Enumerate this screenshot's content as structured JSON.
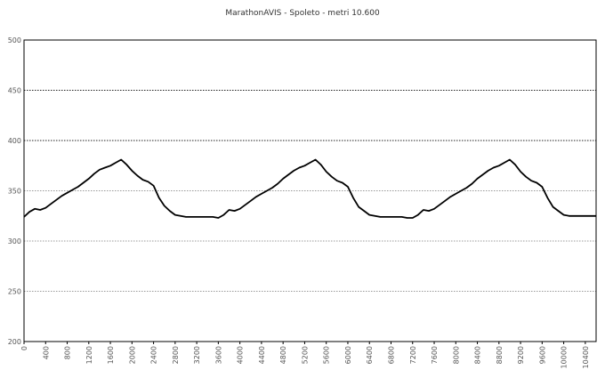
{
  "chart_data": {
    "type": "line",
    "title": "MarathonAVIS - Spoleto - metri 10.600",
    "xlabel": "",
    "ylabel": "",
    "xlim": [
      0,
      10600
    ],
    "ylim": [
      200,
      500
    ],
    "y_ticks": [
      "200",
      "250",
      "300",
      "350",
      "400",
      "450",
      "500"
    ],
    "x_ticks": [
      "0",
      "400",
      "800",
      "1200",
      "1600",
      "2000",
      "2400",
      "2800",
      "3200",
      "3600",
      "4000",
      "4400",
      "4800",
      "5200",
      "5600",
      "6000",
      "6400",
      "6800",
      "7200",
      "7600",
      "8000",
      "8400",
      "8800",
      "9200",
      "9600",
      "10000",
      "10400"
    ],
    "grid": true,
    "legend": "none",
    "line_color": "#000000",
    "series": [
      {
        "x": [
          0,
          100,
          200,
          300,
          400,
          500,
          600,
          700,
          800,
          900,
          1000,
          1100,
          1200,
          1300,
          1400,
          1500,
          1600,
          1700,
          1800,
          1900,
          2000,
          2100,
          2200,
          2300,
          2400,
          2500,
          2600,
          2700,
          2800,
          2900,
          3000,
          3100,
          3200,
          3300,
          3400,
          3500,
          3600,
          3700,
          3800,
          3900,
          4000,
          4100,
          4200,
          4300,
          4400,
          4500,
          4600,
          4700,
          4800,
          4900,
          5000,
          5100,
          5200,
          5300,
          5400,
          5500,
          5600,
          5700,
          5800,
          5900,
          6000,
          6100,
          6200,
          6300,
          6400,
          6500,
          6600,
          6700,
          6800,
          6900,
          7000,
          7100,
          7200,
          7300,
          7400,
          7500,
          7600,
          7700,
          7800,
          7900,
          8000,
          8100,
          8200,
          8300,
          8400,
          8500,
          8600,
          8700,
          8800,
          8900,
          9000,
          9100,
          9200,
          9300,
          9400,
          9500,
          9600,
          9700,
          9800,
          9900,
          10000,
          10100,
          10200,
          10300,
          10400,
          10500,
          10600
        ],
        "values": [
          324,
          329,
          332,
          331,
          333,
          337,
          341,
          345,
          348,
          351,
          354,
          358,
          362,
          367,
          371,
          373,
          375,
          378,
          381,
          376,
          370,
          365,
          361,
          359,
          355,
          343,
          335,
          330,
          326,
          325,
          324,
          324,
          324,
          324,
          324,
          324,
          323,
          326,
          331,
          330,
          332,
          336,
          340,
          344,
          347,
          350,
          353,
          357,
          362,
          366,
          370,
          373,
          375,
          378,
          381,
          376,
          369,
          364,
          360,
          358,
          354,
          343,
          334,
          330,
          326,
          325,
          324,
          324,
          324,
          324,
          324,
          323,
          323,
          326,
          331,
          330,
          332,
          336,
          340,
          344,
          347,
          350,
          353,
          357,
          362,
          366,
          370,
          373,
          375,
          378,
          381,
          376,
          369,
          364,
          360,
          358,
          354,
          343,
          334,
          330,
          326,
          325,
          325,
          325,
          325,
          325,
          325
        ]
      }
    ]
  }
}
